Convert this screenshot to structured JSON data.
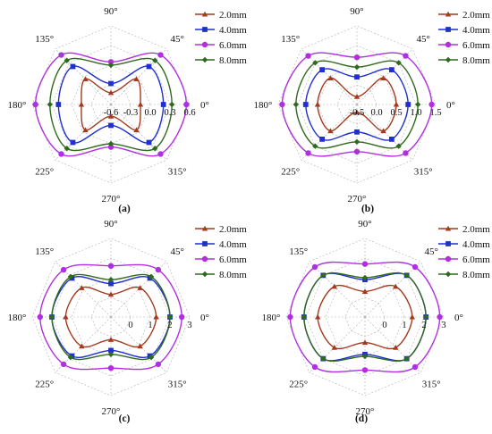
{
  "angle_labels": [
    "0°",
    "45°",
    "90°",
    "135°",
    "180°",
    "225°",
    "270°",
    "315°"
  ],
  "legend": [
    {
      "name": "2.0mm",
      "color": "#a33a1f",
      "marker": "triangle"
    },
    {
      "name": "4.0mm",
      "color": "#1f2fd0",
      "marker": "square"
    },
    {
      "name": "6.0mm",
      "color": "#b030e0",
      "marker": "circle"
    },
    {
      "name": "8.0mm",
      "color": "#2f6a1e",
      "marker": "diamond"
    }
  ],
  "chart_data": [
    {
      "type": "radar",
      "panel_label": "(a)",
      "angles_deg": [
        0,
        45,
        90,
        135,
        180,
        225,
        270,
        315
      ],
      "angle_labels": [
        "0°",
        "45°",
        "90°",
        "135°",
        "180°",
        "225°",
        "270°",
        "315°"
      ],
      "rlim": [
        -0.6,
        0.6
      ],
      "tick_labels": [
        "-0.6",
        "-0.3",
        "0.0",
        "0.3",
        "0.6"
      ],
      "tick_values": [
        -0.6,
        -0.3,
        0.0,
        0.3,
        0.6
      ],
      "grid": true,
      "legend_position": "top-right",
      "series": [
        {
          "name": "2.0mm",
          "values": [
            -0.15,
            -0.05,
            -0.42,
            -0.05,
            -0.15,
            -0.05,
            -0.42,
            -0.05
          ]
        },
        {
          "name": "4.0mm",
          "values": [
            0.2,
            0.22,
            -0.28,
            0.22,
            0.2,
            0.22,
            -0.28,
            0.22
          ]
        },
        {
          "name": "6.0mm",
          "values": [
            0.55,
            0.47,
            0.05,
            0.47,
            0.55,
            0.47,
            0.05,
            0.47
          ]
        },
        {
          "name": "8.0mm",
          "values": [
            0.33,
            0.35,
            0.0,
            0.35,
            0.33,
            0.35,
            0.0,
            0.35
          ]
        }
      ]
    },
    {
      "type": "radar",
      "panel_label": "(b)",
      "angles_deg": [
        0,
        45,
        90,
        135,
        180,
        225,
        270,
        315
      ],
      "angle_labels": [
        "0°",
        "45°",
        "90°",
        "135°",
        "180°",
        "225°",
        "270°",
        "315°"
      ],
      "rlim": [
        -0.5,
        1.5
      ],
      "tick_labels": [
        "-0.5",
        "0.0",
        "0.5",
        "1.0",
        "1.5"
      ],
      "tick_values": [
        -0.5,
        0.0,
        0.5,
        1.0,
        1.5
      ],
      "grid": true,
      "legend_position": "top-right",
      "series": [
        {
          "name": "2.0mm",
          "values": [
            0.5,
            0.45,
            -0.3,
            0.45,
            0.5,
            0.45,
            -0.3,
            0.45
          ]
        },
        {
          "name": "4.0mm",
          "values": [
            0.8,
            0.75,
            0.2,
            0.75,
            0.8,
            0.75,
            0.2,
            0.75
          ]
        },
        {
          "name": "6.0mm",
          "values": [
            1.4,
            1.25,
            0.7,
            1.25,
            1.4,
            1.25,
            0.7,
            1.25
          ]
        },
        {
          "name": "8.0mm",
          "values": [
            1.05,
            1.0,
            0.45,
            1.0,
            1.05,
            1.0,
            0.45,
            1.0
          ]
        }
      ]
    },
    {
      "type": "radar",
      "panel_label": "(c)",
      "angles_deg": [
        0,
        45,
        90,
        135,
        180,
        225,
        270,
        315
      ],
      "angle_labels": [
        "0°",
        "45°",
        "90°",
        "135°",
        "180°",
        "225°",
        "270°",
        "315°"
      ],
      "rlim": [
        -1,
        3
      ],
      "tick_labels": [
        "0",
        "1",
        "2",
        "3"
      ],
      "tick_values": [
        0,
        1,
        2,
        3
      ],
      "grid": true,
      "legend_position": "top-right",
      "series": [
        {
          "name": "2.0mm",
          "values": [
            1.3,
            1.1,
            0.15,
            1.1,
            1.3,
            1.1,
            0.15,
            1.1
          ]
        },
        {
          "name": "4.0mm",
          "values": [
            2.0,
            1.8,
            0.7,
            1.8,
            2.0,
            1.8,
            0.7,
            1.8
          ]
        },
        {
          "name": "6.0mm",
          "values": [
            2.6,
            2.4,
            1.6,
            2.4,
            2.6,
            2.4,
            1.6,
            2.4
          ]
        },
        {
          "name": "8.0mm",
          "values": [
            2.0,
            1.9,
            0.9,
            1.9,
            2.0,
            1.9,
            0.9,
            1.9
          ]
        }
      ]
    },
    {
      "type": "radar",
      "panel_label": "(d)",
      "angles_deg": [
        0,
        45,
        90,
        135,
        180,
        225,
        270,
        315
      ],
      "angle_labels": [
        "0°",
        "45°",
        "90°",
        "135°",
        "180°",
        "225°",
        "270°",
        "315°"
      ],
      "rlim": [
        -1,
        3
      ],
      "tick_labels": [
        "0",
        "1",
        "2",
        "3"
      ],
      "tick_values": [
        0,
        1,
        2,
        3
      ],
      "grid": true,
      "legend_position": "top-right",
      "series": [
        {
          "name": "2.0mm",
          "values": [
            1.4,
            1.2,
            0.3,
            1.2,
            1.4,
            1.2,
            0.3,
            1.2
          ]
        },
        {
          "name": "4.0mm",
          "values": [
            2.1,
            2.0,
            0.9,
            2.0,
            2.1,
            2.0,
            0.9,
            2.0
          ]
        },
        {
          "name": "6.0mm",
          "values": [
            2.8,
            2.6,
            1.7,
            2.6,
            2.8,
            2.6,
            1.7,
            2.6
          ]
        },
        {
          "name": "8.0mm",
          "values": [
            2.1,
            2.0,
            1.0,
            2.0,
            2.1,
            2.0,
            1.0,
            2.0
          ]
        }
      ]
    }
  ]
}
